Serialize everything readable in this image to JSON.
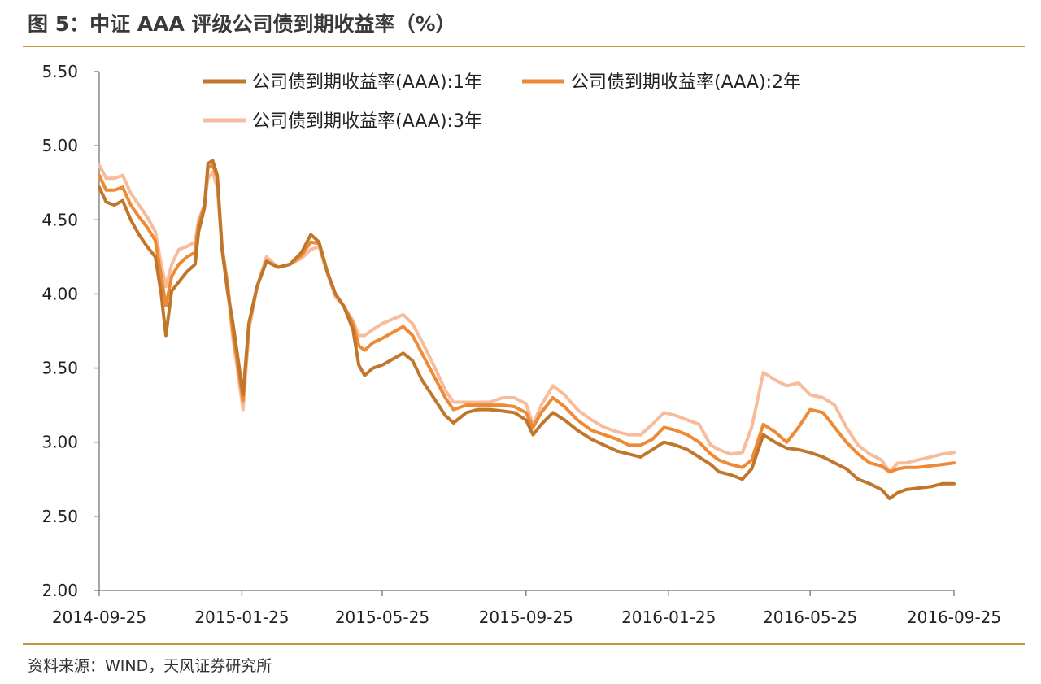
{
  "title": "图 5：中证 AAA 评级公司债到期收益率（%）",
  "source": "资料来源：WIND，天风证券研究所",
  "chart_data": {
    "type": "line",
    "title": "图 5：中证 AAA 评级公司债到期收益率（%）",
    "xlabel": "",
    "ylabel": "",
    "x_tick_labels": [
      "2014-09-25",
      "2015-01-25",
      "2015-05-25",
      "2015-09-25",
      "2016-01-25",
      "2016-05-25",
      "2016-09-25"
    ],
    "y_tick_labels": [
      "2.00",
      "2.50",
      "3.00",
      "3.50",
      "4.00",
      "4.50",
      "5.00",
      "5.50"
    ],
    "ylim": [
      2.0,
      5.5
    ],
    "xlim": [
      "2014-09-25",
      "2016-09-25"
    ],
    "grid": false,
    "legend_position": "top",
    "series": [
      {
        "name": "公司债到期收益率(AAA):1年",
        "color": "#c0772c",
        "points": [
          [
            "2014-09-25",
            4.72
          ],
          [
            "2014-10-01",
            4.62
          ],
          [
            "2014-10-08",
            4.6
          ],
          [
            "2014-10-15",
            4.63
          ],
          [
            "2014-10-22",
            4.5
          ],
          [
            "2014-10-29",
            4.4
          ],
          [
            "2014-11-05",
            4.32
          ],
          [
            "2014-11-12",
            4.25
          ],
          [
            "2014-11-17",
            4.0
          ],
          [
            "2014-11-21",
            3.72
          ],
          [
            "2014-11-26",
            4.02
          ],
          [
            "2014-12-02",
            4.08
          ],
          [
            "2014-12-09",
            4.15
          ],
          [
            "2014-12-16",
            4.2
          ],
          [
            "2014-12-19",
            4.42
          ],
          [
            "2014-12-24",
            4.58
          ],
          [
            "2014-12-27",
            4.88
          ],
          [
            "2014-12-31",
            4.9
          ],
          [
            "2015-01-04",
            4.8
          ],
          [
            "2015-01-08",
            4.3
          ],
          [
            "2015-01-13",
            4.0
          ],
          [
            "2015-01-17",
            3.82
          ],
          [
            "2015-01-21",
            3.6
          ],
          [
            "2015-01-26",
            3.32
          ],
          [
            "2015-01-31",
            3.8
          ],
          [
            "2015-02-07",
            4.05
          ],
          [
            "2015-02-15",
            4.22
          ],
          [
            "2015-02-25",
            4.18
          ],
          [
            "2015-03-07",
            4.2
          ],
          [
            "2015-03-17",
            4.28
          ],
          [
            "2015-03-25",
            4.4
          ],
          [
            "2015-04-01",
            4.35
          ],
          [
            "2015-04-08",
            4.15
          ],
          [
            "2015-04-15",
            4.0
          ],
          [
            "2015-04-22",
            3.92
          ],
          [
            "2015-04-30",
            3.76
          ],
          [
            "2015-05-05",
            3.52
          ],
          [
            "2015-05-10",
            3.45
          ],
          [
            "2015-05-17",
            3.5
          ],
          [
            "2015-05-25",
            3.52
          ],
          [
            "2015-06-03",
            3.56
          ],
          [
            "2015-06-12",
            3.6
          ],
          [
            "2015-06-20",
            3.55
          ],
          [
            "2015-06-28",
            3.42
          ],
          [
            "2015-07-08",
            3.3
          ],
          [
            "2015-07-18",
            3.18
          ],
          [
            "2015-07-25",
            3.13
          ],
          [
            "2015-08-05",
            3.2
          ],
          [
            "2015-08-15",
            3.22
          ],
          [
            "2015-08-25",
            3.22
          ],
          [
            "2015-09-05",
            3.21
          ],
          [
            "2015-09-15",
            3.2
          ],
          [
            "2015-09-25",
            3.15
          ],
          [
            "2015-10-01",
            3.05
          ],
          [
            "2015-10-08",
            3.12
          ],
          [
            "2015-10-18",
            3.2
          ],
          [
            "2015-10-28",
            3.15
          ],
          [
            "2015-11-08",
            3.08
          ],
          [
            "2015-11-20",
            3.02
          ],
          [
            "2015-12-01",
            2.98
          ],
          [
            "2015-12-12",
            2.94
          ],
          [
            "2015-12-22",
            2.92
          ],
          [
            "2016-01-01",
            2.9
          ],
          [
            "2016-01-11",
            2.95
          ],
          [
            "2016-01-21",
            3.0
          ],
          [
            "2016-01-31",
            2.98
          ],
          [
            "2016-02-10",
            2.95
          ],
          [
            "2016-02-20",
            2.9
          ],
          [
            "2016-03-01",
            2.85
          ],
          [
            "2016-03-08",
            2.8
          ],
          [
            "2016-03-18",
            2.78
          ],
          [
            "2016-03-28",
            2.75
          ],
          [
            "2016-04-05",
            2.82
          ],
          [
            "2016-04-15",
            3.05
          ],
          [
            "2016-04-25",
            3.0
          ],
          [
            "2016-05-05",
            2.96
          ],
          [
            "2016-05-15",
            2.95
          ],
          [
            "2016-05-25",
            2.93
          ],
          [
            "2016-06-05",
            2.9
          ],
          [
            "2016-06-15",
            2.86
          ],
          [
            "2016-06-25",
            2.82
          ],
          [
            "2016-07-05",
            2.75
          ],
          [
            "2016-07-15",
            2.72
          ],
          [
            "2016-07-25",
            2.68
          ],
          [
            "2016-08-01",
            2.62
          ],
          [
            "2016-08-08",
            2.66
          ],
          [
            "2016-08-15",
            2.68
          ],
          [
            "2016-08-25",
            2.69
          ],
          [
            "2016-09-05",
            2.7
          ],
          [
            "2016-09-15",
            2.72
          ],
          [
            "2016-09-25",
            2.72
          ]
        ]
      },
      {
        "name": "公司债到期收益率(AAA):2年",
        "color": "#ee8a35",
        "points": [
          [
            "2014-09-25",
            4.8
          ],
          [
            "2014-10-01",
            4.7
          ],
          [
            "2014-10-08",
            4.7
          ],
          [
            "2014-10-15",
            4.72
          ],
          [
            "2014-10-22",
            4.6
          ],
          [
            "2014-10-29",
            4.52
          ],
          [
            "2014-11-05",
            4.45
          ],
          [
            "2014-11-12",
            4.36
          ],
          [
            "2014-11-17",
            4.12
          ],
          [
            "2014-11-21",
            3.92
          ],
          [
            "2014-11-26",
            4.12
          ],
          [
            "2014-12-02",
            4.2
          ],
          [
            "2014-12-09",
            4.25
          ],
          [
            "2014-12-16",
            4.28
          ],
          [
            "2014-12-19",
            4.47
          ],
          [
            "2014-12-24",
            4.6
          ],
          [
            "2014-12-27",
            4.85
          ],
          [
            "2014-12-31",
            4.87
          ],
          [
            "2015-01-04",
            4.78
          ],
          [
            "2015-01-08",
            4.32
          ],
          [
            "2015-01-13",
            4.05
          ],
          [
            "2015-01-17",
            3.76
          ],
          [
            "2015-01-21",
            3.55
          ],
          [
            "2015-01-26",
            3.28
          ],
          [
            "2015-01-31",
            3.8
          ],
          [
            "2015-02-07",
            4.05
          ],
          [
            "2015-02-15",
            4.22
          ],
          [
            "2015-02-25",
            4.18
          ],
          [
            "2015-03-07",
            4.2
          ],
          [
            "2015-03-17",
            4.26
          ],
          [
            "2015-03-25",
            4.35
          ],
          [
            "2015-04-01",
            4.34
          ],
          [
            "2015-04-08",
            4.15
          ],
          [
            "2015-04-15",
            4.0
          ],
          [
            "2015-04-22",
            3.92
          ],
          [
            "2015-04-30",
            3.8
          ],
          [
            "2015-05-05",
            3.65
          ],
          [
            "2015-05-10",
            3.62
          ],
          [
            "2015-05-17",
            3.67
          ],
          [
            "2015-05-25",
            3.7
          ],
          [
            "2015-06-03",
            3.74
          ],
          [
            "2015-06-12",
            3.78
          ],
          [
            "2015-06-20",
            3.72
          ],
          [
            "2015-06-28",
            3.6
          ],
          [
            "2015-07-08",
            3.45
          ],
          [
            "2015-07-18",
            3.3
          ],
          [
            "2015-07-25",
            3.22
          ],
          [
            "2015-08-05",
            3.25
          ],
          [
            "2015-08-15",
            3.25
          ],
          [
            "2015-08-25",
            3.25
          ],
          [
            "2015-09-05",
            3.25
          ],
          [
            "2015-09-15",
            3.24
          ],
          [
            "2015-09-25",
            3.2
          ],
          [
            "2015-10-01",
            3.1
          ],
          [
            "2015-10-08",
            3.2
          ],
          [
            "2015-10-18",
            3.3
          ],
          [
            "2015-10-28",
            3.24
          ],
          [
            "2015-11-08",
            3.15
          ],
          [
            "2015-11-20",
            3.08
          ],
          [
            "2015-12-01",
            3.05
          ],
          [
            "2015-12-12",
            3.02
          ],
          [
            "2015-12-22",
            2.98
          ],
          [
            "2016-01-01",
            2.98
          ],
          [
            "2016-01-11",
            3.02
          ],
          [
            "2016-01-21",
            3.1
          ],
          [
            "2016-01-31",
            3.08
          ],
          [
            "2016-02-10",
            3.05
          ],
          [
            "2016-02-20",
            3.0
          ],
          [
            "2016-03-01",
            2.92
          ],
          [
            "2016-03-08",
            2.88
          ],
          [
            "2016-03-18",
            2.85
          ],
          [
            "2016-03-28",
            2.83
          ],
          [
            "2016-04-05",
            2.88
          ],
          [
            "2016-04-15",
            3.12
          ],
          [
            "2016-04-25",
            3.07
          ],
          [
            "2016-05-05",
            3.0
          ],
          [
            "2016-05-15",
            3.1
          ],
          [
            "2016-05-25",
            3.22
          ],
          [
            "2016-06-05",
            3.2
          ],
          [
            "2016-06-15",
            3.1
          ],
          [
            "2016-06-25",
            3.0
          ],
          [
            "2016-07-05",
            2.92
          ],
          [
            "2016-07-15",
            2.86
          ],
          [
            "2016-07-25",
            2.84
          ],
          [
            "2016-08-01",
            2.8
          ],
          [
            "2016-08-08",
            2.82
          ],
          [
            "2016-08-15",
            2.83
          ],
          [
            "2016-08-25",
            2.83
          ],
          [
            "2016-09-05",
            2.84
          ],
          [
            "2016-09-15",
            2.85
          ],
          [
            "2016-09-25",
            2.86
          ]
        ]
      },
      {
        "name": "公司债到期收益率(AAA):3年",
        "color": "#f6bc9b",
        "points": [
          [
            "2014-09-25",
            4.87
          ],
          [
            "2014-10-01",
            4.78
          ],
          [
            "2014-10-08",
            4.78
          ],
          [
            "2014-10-15",
            4.8
          ],
          [
            "2014-10-22",
            4.68
          ],
          [
            "2014-10-29",
            4.6
          ],
          [
            "2014-11-05",
            4.52
          ],
          [
            "2014-11-12",
            4.42
          ],
          [
            "2014-11-17",
            4.2
          ],
          [
            "2014-11-21",
            4.05
          ],
          [
            "2014-11-26",
            4.2
          ],
          [
            "2014-12-02",
            4.3
          ],
          [
            "2014-12-09",
            4.32
          ],
          [
            "2014-12-16",
            4.35
          ],
          [
            "2014-12-19",
            4.5
          ],
          [
            "2014-12-24",
            4.6
          ],
          [
            "2014-12-27",
            4.78
          ],
          [
            "2014-12-31",
            4.82
          ],
          [
            "2015-01-04",
            4.72
          ],
          [
            "2015-01-08",
            4.3
          ],
          [
            "2015-01-13",
            4.03
          ],
          [
            "2015-01-17",
            3.72
          ],
          [
            "2015-01-21",
            3.5
          ],
          [
            "2015-01-26",
            3.22
          ],
          [
            "2015-01-31",
            3.75
          ],
          [
            "2015-02-07",
            4.05
          ],
          [
            "2015-02-15",
            4.25
          ],
          [
            "2015-02-25",
            4.18
          ],
          [
            "2015-03-07",
            4.2
          ],
          [
            "2015-03-17",
            4.24
          ],
          [
            "2015-03-25",
            4.3
          ],
          [
            "2015-04-01",
            4.32
          ],
          [
            "2015-04-08",
            4.14
          ],
          [
            "2015-04-15",
            3.98
          ],
          [
            "2015-04-22",
            3.92
          ],
          [
            "2015-04-30",
            3.82
          ],
          [
            "2015-05-05",
            3.72
          ],
          [
            "2015-05-10",
            3.72
          ],
          [
            "2015-05-17",
            3.76
          ],
          [
            "2015-05-25",
            3.8
          ],
          [
            "2015-06-03",
            3.83
          ],
          [
            "2015-06-12",
            3.86
          ],
          [
            "2015-06-20",
            3.8
          ],
          [
            "2015-06-28",
            3.68
          ],
          [
            "2015-07-08",
            3.52
          ],
          [
            "2015-07-18",
            3.35
          ],
          [
            "2015-07-25",
            3.27
          ],
          [
            "2015-08-05",
            3.27
          ],
          [
            "2015-08-15",
            3.27
          ],
          [
            "2015-08-25",
            3.27
          ],
          [
            "2015-09-05",
            3.3
          ],
          [
            "2015-09-15",
            3.3
          ],
          [
            "2015-09-25",
            3.26
          ],
          [
            "2015-10-01",
            3.12
          ],
          [
            "2015-10-08",
            3.25
          ],
          [
            "2015-10-18",
            3.38
          ],
          [
            "2015-10-28",
            3.32
          ],
          [
            "2015-11-08",
            3.22
          ],
          [
            "2015-11-20",
            3.15
          ],
          [
            "2015-12-01",
            3.1
          ],
          [
            "2015-12-12",
            3.07
          ],
          [
            "2015-12-22",
            3.05
          ],
          [
            "2016-01-01",
            3.05
          ],
          [
            "2016-01-11",
            3.12
          ],
          [
            "2016-01-21",
            3.2
          ],
          [
            "2016-01-31",
            3.18
          ],
          [
            "2016-02-10",
            3.15
          ],
          [
            "2016-02-20",
            3.12
          ],
          [
            "2016-03-01",
            2.98
          ],
          [
            "2016-03-08",
            2.95
          ],
          [
            "2016-03-18",
            2.92
          ],
          [
            "2016-03-28",
            2.93
          ],
          [
            "2016-04-05",
            3.1
          ],
          [
            "2016-04-15",
            3.47
          ],
          [
            "2016-04-25",
            3.42
          ],
          [
            "2016-05-05",
            3.38
          ],
          [
            "2016-05-15",
            3.4
          ],
          [
            "2016-05-25",
            3.32
          ],
          [
            "2016-06-05",
            3.3
          ],
          [
            "2016-06-15",
            3.25
          ],
          [
            "2016-06-25",
            3.1
          ],
          [
            "2016-07-05",
            2.98
          ],
          [
            "2016-07-15",
            2.92
          ],
          [
            "2016-07-25",
            2.88
          ],
          [
            "2016-08-01",
            2.8
          ],
          [
            "2016-08-08",
            2.86
          ],
          [
            "2016-08-15",
            2.86
          ],
          [
            "2016-08-25",
            2.88
          ],
          [
            "2016-09-05",
            2.9
          ],
          [
            "2016-09-15",
            2.92
          ],
          [
            "2016-09-25",
            2.93
          ]
        ]
      }
    ]
  }
}
